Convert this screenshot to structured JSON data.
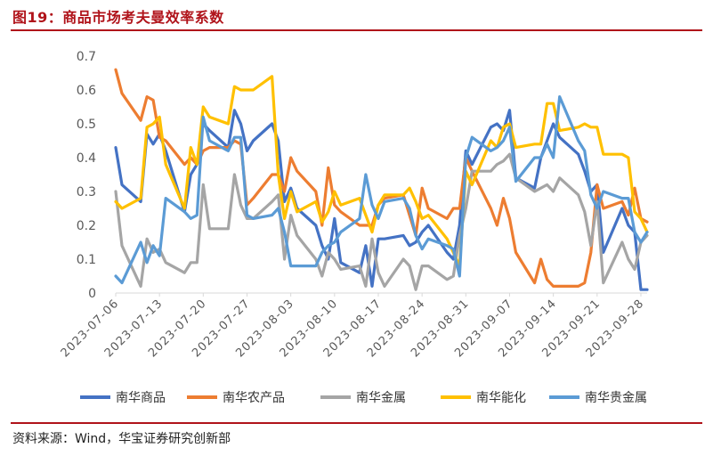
{
  "title": "图19：商品市场考夫曼效率系数",
  "source": "资料来源：Wind，华宝证券研究创新部",
  "chart_data": {
    "type": "line",
    "title": "",
    "xlabel": "",
    "ylabel": "",
    "ylim": [
      0,
      0.7
    ],
    "yticks": [
      "0",
      "0.1",
      "0.2",
      "0.3",
      "0.4",
      "0.5",
      "0.6",
      "0.7"
    ],
    "xlim": [
      "2023-07-06",
      "2023-09-29"
    ],
    "xticks": [
      "2023-07-06",
      "2023-07-13",
      "2023-07-20",
      "2023-07-27",
      "2023-08-03",
      "2023-08-10",
      "2023-08-17",
      "2023-08-24",
      "2023-08-31",
      "2023-09-07",
      "2023-09-14",
      "2023-09-21",
      "2023-09-28"
    ],
    "grid": false,
    "legend_position": "bottom",
    "x": [
      "2023-07-06",
      "2023-07-07",
      "2023-07-10",
      "2023-07-11",
      "2023-07-12",
      "2023-07-13",
      "2023-07-14",
      "2023-07-17",
      "2023-07-18",
      "2023-07-19",
      "2023-07-20",
      "2023-07-21",
      "2023-07-24",
      "2023-07-25",
      "2023-07-26",
      "2023-07-27",
      "2023-07-28",
      "2023-07-31",
      "2023-08-01",
      "2023-08-02",
      "2023-08-03",
      "2023-08-04",
      "2023-08-07",
      "2023-08-08",
      "2023-08-09",
      "2023-08-10",
      "2023-08-11",
      "2023-08-14",
      "2023-08-15",
      "2023-08-16",
      "2023-08-17",
      "2023-08-18",
      "2023-08-21",
      "2023-08-22",
      "2023-08-23",
      "2023-08-24",
      "2023-08-25",
      "2023-08-28",
      "2023-08-29",
      "2023-08-30",
      "2023-08-31",
      "2023-09-01",
      "2023-09-04",
      "2023-09-05",
      "2023-09-06",
      "2023-09-07",
      "2023-09-08",
      "2023-09-11",
      "2023-09-12",
      "2023-09-13",
      "2023-09-14",
      "2023-09-15",
      "2023-09-18",
      "2023-09-19",
      "2023-09-20",
      "2023-09-21",
      "2023-09-22",
      "2023-09-25",
      "2023-09-26",
      "2023-09-27",
      "2023-09-28",
      "2023-09-29"
    ],
    "series": [
      {
        "name": "南华商品",
        "color": "#4472c4",
        "values": [
          0.43,
          0.32,
          0.27,
          0.47,
          0.44,
          0.47,
          0.42,
          0.24,
          0.35,
          0.38,
          0.5,
          0.48,
          0.43,
          0.54,
          0.5,
          0.42,
          0.45,
          0.5,
          0.45,
          0.27,
          0.31,
          0.25,
          0.2,
          0.14,
          0.1,
          0.22,
          0.09,
          0.06,
          0.14,
          0.02,
          0.16,
          0.16,
          0.17,
          0.14,
          0.15,
          0.18,
          0.2,
          0.12,
          0.1,
          0.2,
          0.42,
          0.38,
          0.49,
          0.5,
          0.48,
          0.54,
          0.34,
          0.31,
          0.4,
          0.45,
          0.5,
          0.46,
          0.41,
          0.36,
          0.3,
          0.32,
          0.12,
          0.25,
          0.2,
          0.18,
          0.01,
          0.01
        ]
      },
      {
        "name": "南华农产品",
        "color": "#ed7d31",
        "values": [
          0.66,
          0.59,
          0.51,
          0.58,
          0.57,
          0.46,
          0.45,
          0.38,
          0.4,
          0.38,
          0.42,
          0.43,
          0.43,
          0.45,
          0.44,
          0.26,
          0.28,
          0.35,
          0.35,
          0.3,
          0.4,
          0.36,
          0.3,
          0.2,
          0.37,
          0.26,
          0.24,
          0.2,
          0.2,
          0.2,
          0.26,
          0.28,
          0.29,
          0.23,
          0.17,
          0.31,
          0.25,
          0.22,
          0.25,
          0.25,
          0.4,
          0.36,
          0.25,
          0.2,
          0.28,
          0.22,
          0.12,
          0.03,
          0.1,
          0.04,
          0.02,
          0.02,
          0.02,
          0.03,
          0.12,
          0.32,
          0.25,
          0.27,
          0.23,
          0.31,
          0.22,
          0.21
        ]
      },
      {
        "name": "南华金属",
        "color": "#a5a5a5",
        "values": [
          0.3,
          0.14,
          0.02,
          0.16,
          0.12,
          0.13,
          0.09,
          0.06,
          0.09,
          0.09,
          0.32,
          0.19,
          0.19,
          0.35,
          0.26,
          0.22,
          0.22,
          0.27,
          0.29,
          0.1,
          0.23,
          0.17,
          0.1,
          0.05,
          0.12,
          0.1,
          0.07,
          0.08,
          0.02,
          0.16,
          0.06,
          0.02,
          0.1,
          0.08,
          0.01,
          0.08,
          0.08,
          0.04,
          0.05,
          0.17,
          0.25,
          0.36,
          0.36,
          0.38,
          0.39,
          0.41,
          0.34,
          0.3,
          0.31,
          0.32,
          0.3,
          0.34,
          0.29,
          0.24,
          0.14,
          0.27,
          0.03,
          0.15,
          0.1,
          0.07,
          0.15,
          0.17
        ]
      },
      {
        "name": "南华能化",
        "color": "#ffc000",
        "values": [
          0.27,
          0.25,
          0.28,
          0.49,
          0.5,
          0.52,
          0.38,
          0.25,
          0.43,
          0.38,
          0.55,
          0.52,
          0.5,
          0.61,
          0.6,
          0.6,
          0.6,
          0.64,
          0.35,
          0.22,
          0.3,
          0.24,
          0.27,
          0.21,
          0.24,
          0.3,
          0.26,
          0.28,
          0.23,
          0.18,
          0.26,
          0.29,
          0.29,
          0.31,
          0.27,
          0.22,
          0.23,
          0.16,
          0.12,
          0.08,
          0.36,
          0.32,
          0.45,
          0.43,
          0.49,
          0.5,
          0.43,
          0.44,
          0.44,
          0.56,
          0.56,
          0.48,
          0.49,
          0.5,
          0.49,
          0.49,
          0.41,
          0.41,
          0.4,
          0.24,
          0.22,
          0.18
        ]
      },
      {
        "name": "南华贵金属",
        "color": "#5b9bd5",
        "values": [
          0.05,
          0.03,
          0.15,
          0.09,
          0.14,
          0.11,
          0.28,
          0.24,
          0.22,
          0.23,
          0.52,
          0.45,
          0.42,
          0.46,
          0.46,
          0.23,
          0.22,
          0.23,
          0.25,
          0.18,
          0.08,
          0.08,
          0.08,
          0.12,
          0.14,
          0.15,
          0.18,
          0.22,
          0.35,
          0.26,
          0.22,
          0.27,
          0.28,
          0.25,
          0.17,
          0.13,
          0.16,
          0.14,
          0.13,
          0.05,
          0.4,
          0.46,
          0.42,
          0.43,
          0.45,
          0.49,
          0.33,
          0.4,
          0.4,
          0.44,
          0.4,
          0.58,
          0.45,
          0.42,
          0.29,
          0.25,
          0.3,
          0.28,
          0.28,
          0.18,
          0.15,
          0.18
        ]
      }
    ]
  }
}
